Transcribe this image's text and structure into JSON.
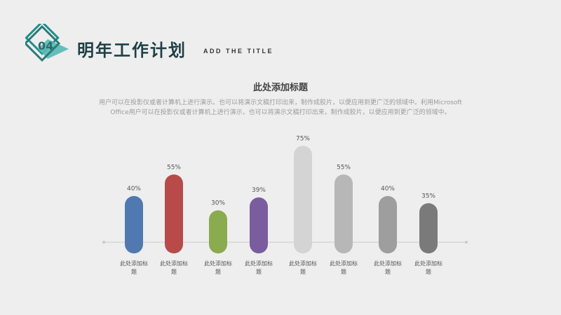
{
  "header": {
    "section_number": "04",
    "title": "明年工作计划",
    "subtitle": "ADD THE TITLE",
    "badge_colors": [
      "#1f8f8a",
      "#55b9b2",
      "#2a5a5a"
    ]
  },
  "content": {
    "chart_heading": "此处添加标题",
    "description_lines": [
      "用户可以在投影仪或者计算机上进行演示。也可以将演示文稿打印出来，制作成胶片，以便应用到更广泛的领域中。利用Microsoft",
      "Office用户可以在投影仪或者计算机上进行演示，也可以将演示文稿打印出来，制作成胶片，以便应用到更广泛的领域中。"
    ]
  },
  "chart_data": {
    "type": "bar",
    "categories": [
      "此处添加标题",
      "此处添加标题",
      "此处添加标题",
      "此处添加标题",
      "此处添加标题",
      "此处添加标题",
      "此处添加标题",
      "此处添加标题"
    ],
    "values": [
      40,
      55,
      30,
      39,
      75,
      55,
      40,
      35
    ],
    "value_labels": [
      "40%",
      "55%",
      "30%",
      "39%",
      "75%",
      "55%",
      "40%",
      "35%"
    ],
    "colors": [
      "#4f79b0",
      "#b84a4a",
      "#8aab4e",
      "#7a5d9e",
      "#d4d4d4",
      "#b7b7b7",
      "#9e9e9e",
      "#7a7a7a"
    ],
    "ylim": [
      0,
      100
    ],
    "grid": false,
    "legend": "none"
  }
}
